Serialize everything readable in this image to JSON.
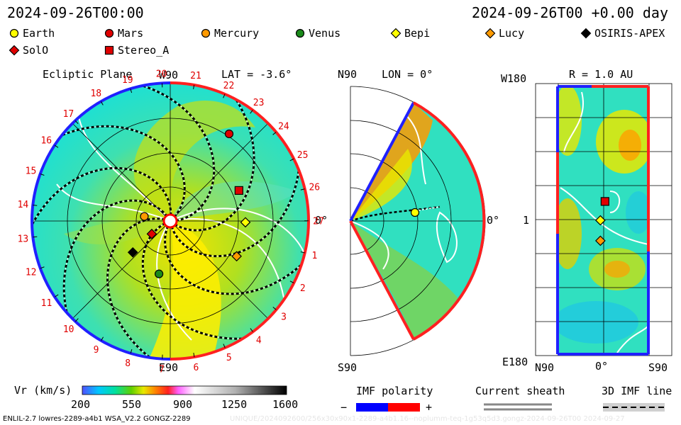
{
  "header": {
    "timestamp": "2024-09-26T00:00",
    "offset_label": "2024-09-26T00 +0.00 day"
  },
  "legend": {
    "items": [
      {
        "label": "Earth",
        "shape": "circle",
        "color": "#ffff00"
      },
      {
        "label": "Mars",
        "shape": "circle",
        "color": "#e00000"
      },
      {
        "label": "Mercury",
        "shape": "circle",
        "color": "#ff9a00"
      },
      {
        "label": "Venus",
        "shape": "circle",
        "color": "#1a8a1a"
      },
      {
        "label": "Bepi",
        "shape": "diamond",
        "color": "#ffff00"
      },
      {
        "label": "Lucy",
        "shape": "diamond",
        "color": "#ff9a00"
      },
      {
        "label": "OSIRIS-APEX",
        "shape": "diamond",
        "color": "#000000"
      },
      {
        "label": "SolO",
        "shape": "diamond",
        "color": "#e00000"
      },
      {
        "label": "Stereo_A",
        "shape": "square",
        "color": "#e00000"
      }
    ]
  },
  "chart_data": [
    {
      "type": "heatmap",
      "title": "Ecliptic Plane",
      "subtitle": "LAT = -3.6°",
      "top_label": "W90",
      "bottom_label": "E90",
      "right_label": "0°",
      "carrington_sectors": [
        "1",
        "2",
        "3",
        "4",
        "5",
        "6",
        "7",
        "8",
        "9",
        "10",
        "11",
        "12",
        "13",
        "14",
        "15",
        "16",
        "17",
        "18",
        "19",
        "20",
        "21",
        "22",
        "23",
        "24",
        "25",
        "26",
        "27"
      ],
      "bodies": [
        {
          "name": "Mars",
          "r_au": 1.4,
          "lon_deg": 56
        },
        {
          "name": "Stereo_A",
          "r_au": 1.0,
          "lon_deg": 24
        },
        {
          "name": "Bepi",
          "r_au": 1.0,
          "lon_deg": -1
        },
        {
          "name": "Lucy",
          "r_au": 1.0,
          "lon_deg": -28
        },
        {
          "name": "Mercury",
          "r_au": 0.35,
          "lon_deg": 170
        },
        {
          "name": "SolO",
          "r_au": 0.3,
          "lon_deg": -145
        },
        {
          "name": "OSIRIS-APEX",
          "r_au": 0.65,
          "lon_deg": -140
        },
        {
          "name": "Venus",
          "r_au": 0.72,
          "lon_deg": -102
        }
      ]
    },
    {
      "type": "heatmap",
      "title": "LON = 0°",
      "top_label": "N90",
      "bottom_label": "S90",
      "right_label": "0°",
      "bodies": [
        {
          "name": "Earth",
          "r_au": 1.0,
          "lat_deg": 0
        }
      ]
    },
    {
      "type": "heatmap",
      "title": "R = 1.0 AU",
      "top_label": "W180",
      "bottom_label": "E180",
      "left_mid_label": "1",
      "x_ticks": [
        "N90",
        "0°",
        "S90"
      ],
      "bodies": [
        {
          "name": "Stereo_A",
          "lat_deg": -2,
          "lon_deg": 24
        },
        {
          "name": "Bepi",
          "lat_deg": 5,
          "lon_deg": -1
        },
        {
          "name": "Lucy",
          "lat_deg": 5,
          "lon_deg": -28
        }
      ]
    }
  ],
  "colorbar": {
    "label": "Vr (km/s)",
    "ticks": [
      "200",
      "550",
      "900",
      "1250",
      "1600"
    ],
    "min": 200,
    "max": 1600
  },
  "imf_polarity": {
    "label": "IMF polarity",
    "minus": "−",
    "plus": "+",
    "neg_color": "#0000ff",
    "pos_color": "#ff0000"
  },
  "current_sheath": {
    "label": "Current sheath"
  },
  "imf_line": {
    "label": "3D IMF line"
  },
  "footer": {
    "model_info": "ENLIL-2.7 lowres-2289-a4b1 WSA_V2.2 GONGZ-2289",
    "watermark": "UNIQUE/2024092600/256x30x90x1-2289-a4b1.16--noplumm-teq-1g53q5d3.gongz-2024-09-26T00   2024-09-27"
  }
}
